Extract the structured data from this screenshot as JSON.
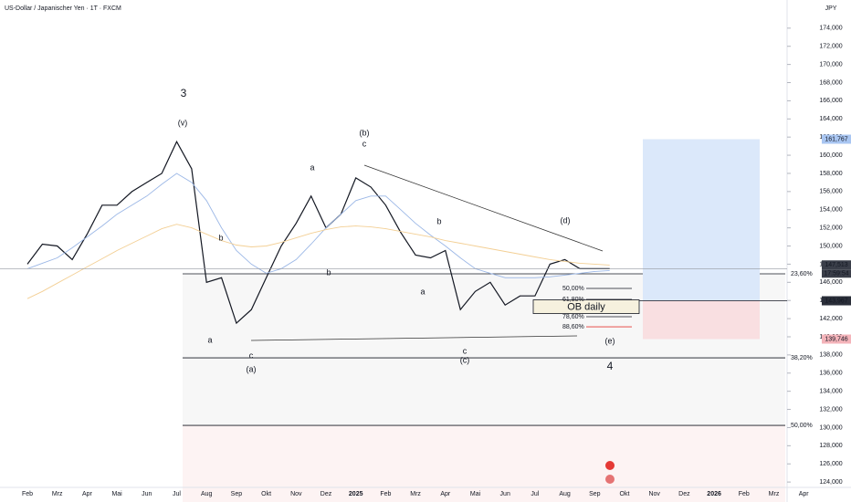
{
  "chart_data": {
    "type": "line",
    "title": "US-Dollar / Japanischer Yen · 1T · FXCM",
    "currency": "JPY",
    "categories": [
      "Feb",
      null,
      "Mrz",
      null,
      "Apr",
      null,
      "Mai",
      null,
      "Jun",
      null,
      "Jul",
      null,
      "Aug",
      null,
      "Sep",
      null,
      "Okt",
      null,
      "Nov",
      null,
      "Dez",
      null,
      "2025",
      null,
      "Feb",
      null,
      "Mrz",
      null,
      "Apr",
      null,
      "Mai",
      null,
      "Jun",
      null,
      "Jul",
      null,
      "Aug",
      null,
      "Sep",
      null,
      "Okt",
      null,
      "Nov",
      null,
      "Dez",
      null,
      "2026",
      null,
      "Feb",
      null,
      "Mrz",
      null,
      "Apr"
    ],
    "series": [
      {
        "color": "#131722",
        "values": [
          148000,
          150200,
          150000,
          148500,
          151300,
          154500,
          154500,
          156000,
          157000,
          158000,
          161500,
          158500,
          146000,
          146500,
          141500,
          143000,
          146500,
          150000,
          152500,
          155500,
          152000,
          153500,
          157500,
          156500,
          154500,
          151500,
          149000,
          148700,
          149500,
          143000,
          145000,
          146000,
          143500,
          144500,
          144500,
          148000,
          148500,
          147500,
          147500,
          147500,
          null,
          null,
          null,
          null,
          null,
          null,
          null,
          null,
          null,
          null,
          null,
          null,
          null
        ]
      },
      {
        "color": "#9bb7e6",
        "values": [
          147500,
          148100,
          148700,
          149800,
          151000,
          152200,
          153500,
          154500,
          155500,
          156800,
          158000,
          157000,
          155000,
          152000,
          149500,
          148000,
          147000,
          147500,
          148500,
          150200,
          152000,
          153500,
          155000,
          155500,
          155500,
          154000,
          152500,
          151200,
          150000,
          148700,
          147500,
          147000,
          146500,
          146500,
          146500,
          146600,
          146800,
          147000,
          147200,
          147300,
          null,
          null,
          null,
          null,
          null,
          null,
          null,
          null,
          null,
          null,
          null,
          null,
          null
        ]
      },
      {
        "color": "#f3cf94",
        "values": [
          144200,
          145000,
          145900,
          146800,
          147700,
          148600,
          149500,
          150300,
          151100,
          151900,
          152400,
          152000,
          151300,
          150600,
          150100,
          149900,
          150000,
          150400,
          150900,
          151400,
          151800,
          152100,
          152200,
          152100,
          151900,
          151600,
          151300,
          151000,
          150600,
          150300,
          150000,
          149700,
          149400,
          149100,
          148800,
          148500,
          148300,
          148100,
          148000,
          147900,
          null,
          null,
          null,
          null,
          null,
          null,
          null,
          null,
          null,
          null,
          null,
          null,
          null
        ]
      }
    ],
    "ylim": [
      121800,
      177100
    ],
    "yticks": [
      {
        "value": 124000,
        "label": "124,000"
      },
      {
        "value": 126000,
        "label": "126,000"
      },
      {
        "value": 128000,
        "label": "128,000"
      },
      {
        "value": 130000,
        "label": "130,000"
      },
      {
        "value": 132000,
        "label": "132,000"
      },
      {
        "value": 134000,
        "label": "134,000"
      },
      {
        "value": 136000,
        "label": "136,000"
      },
      {
        "value": 138000,
        "label": "138,000"
      },
      {
        "value": 140000,
        "label": "140,000"
      },
      {
        "value": 142000,
        "label": "142,000"
      },
      {
        "value": 144000,
        "label": "144,000"
      },
      {
        "value": 146000,
        "label": "146,000"
      },
      {
        "value": 148000,
        "label": "148,000"
      },
      {
        "value": 150000,
        "label": "150,000"
      },
      {
        "value": 152000,
        "label": "152,000"
      },
      {
        "value": 154000,
        "label": "154,000"
      },
      {
        "value": 156000,
        "label": "156,000"
      },
      {
        "value": 158000,
        "label": "158,000"
      },
      {
        "value": 160000,
        "label": "160,000"
      },
      {
        "value": 162000,
        "label": "162,000"
      },
      {
        "value": 164000,
        "label": "164,000"
      },
      {
        "value": 166000,
        "label": "166,000"
      },
      {
        "value": 168000,
        "label": "168,000"
      },
      {
        "value": 170000,
        "label": "170,000"
      },
      {
        "value": 172000,
        "label": "172,000"
      },
      {
        "value": 174000,
        "label": "174,000"
      }
    ],
    "fib_levels": [
      {
        "value": 146940,
        "label": "23,60%"
      },
      {
        "value": 137680,
        "label": "38,20%"
      },
      {
        "value": 130240,
        "label": "50,00%"
      }
    ],
    "fib_extensions": [
      {
        "value": 145330,
        "label": "50,00%",
        "color": "#131722"
      },
      {
        "value": 144120,
        "label": "61,80%",
        "color": "#131722"
      },
      {
        "value": 142210,
        "label": "78,60%",
        "color": "#131722"
      },
      {
        "value": 141100,
        "label": "88,60%",
        "color": "#e53935"
      }
    ],
    "ob_label": "OB daily",
    "position": {
      "target": {
        "value": 161767,
        "label": "161,767"
      },
      "entry": {
        "value": 143967,
        "label": "143,967"
      },
      "stop": {
        "value": 139746,
        "label": "139,746"
      }
    },
    "last_price": {
      "value": 147513,
      "label": "147,513"
    },
    "countdown": "17:59:54",
    "annotations": [
      {
        "text": "3",
        "color": "#66a96a"
      },
      {
        "text": "(v)",
        "color": "#131722"
      },
      {
        "text": "(b)",
        "color": "#131722"
      },
      {
        "text": "c",
        "color": "#131722"
      },
      {
        "text": "a",
        "color": "#131722"
      },
      {
        "text": "b",
        "color": "#131722"
      },
      {
        "text": "b",
        "color": "#131722"
      },
      {
        "text": "a",
        "color": "#131722"
      },
      {
        "text": "c",
        "color": "#131722"
      },
      {
        "text": "(a)",
        "color": "#131722"
      },
      {
        "text": "b",
        "color": "#131722"
      },
      {
        "text": "a",
        "color": "#131722"
      },
      {
        "text": "(d)",
        "color": "#131722"
      },
      {
        "text": "c",
        "color": "#131722"
      },
      {
        "text": "(c)",
        "color": "#131722"
      },
      {
        "text": "(e)",
        "color": "#131722"
      },
      {
        "text": "4",
        "color": "#66a96a"
      }
    ]
  }
}
